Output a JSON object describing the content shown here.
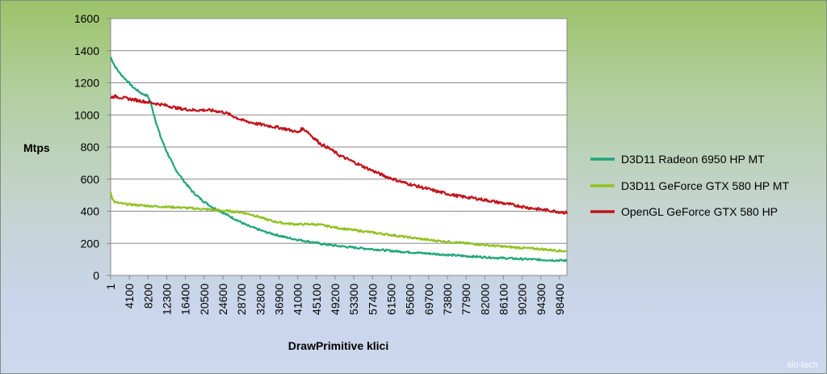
{
  "chart_data": {
    "type": "line",
    "title": "",
    "ylabel": "Mtps",
    "xlabel": "DrawPrimitive klici",
    "ylim": [
      0,
      1600
    ],
    "yticks": [
      "0",
      "200",
      "400",
      "600",
      "800",
      "1000",
      "1200",
      "1400",
      "1600"
    ],
    "xlim": [
      1,
      100000
    ],
    "xticks": [
      "1",
      "4100",
      "8200",
      "12300",
      "16400",
      "20500",
      "24600",
      "28700",
      "32800",
      "36900",
      "41000",
      "45100",
      "49200",
      "53300",
      "57400",
      "61500",
      "65600",
      "69700",
      "73800",
      "77900",
      "82000",
      "86100",
      "90200",
      "94300",
      "98400"
    ],
    "grid": "horizontal",
    "legend_position": "right",
    "series": [
      {
        "name": "D3D11 Radeon 6950 HP MT",
        "color": "#1fa67a",
        "x": [
          1,
          1000,
          2000,
          3000,
          4000,
          5000,
          6000,
          7000,
          8000,
          8500,
          9000,
          10000,
          11000,
          12000,
          13000,
          14000,
          16000,
          18000,
          20000,
          22000,
          24000,
          26000,
          28000,
          30000,
          32000,
          34000,
          36000,
          38000,
          40000,
          42000,
          44000,
          46000,
          48000,
          50000,
          54000,
          58000,
          62000,
          66000,
          70000,
          74000,
          78000,
          82000,
          86000,
          90000,
          94000,
          98000,
          100000
        ],
        "y": [
          1360,
          1300,
          1260,
          1230,
          1200,
          1170,
          1150,
          1130,
          1120,
          1100,
          1050,
          950,
          860,
          790,
          730,
          670,
          590,
          520,
          470,
          430,
          400,
          370,
          340,
          310,
          290,
          270,
          255,
          240,
          228,
          218,
          208,
          198,
          190,
          183,
          172,
          162,
          152,
          144,
          136,
          128,
          120,
          114,
          108,
          103,
          98,
          94,
          92
        ]
      },
      {
        "name": "D3D11 GeForce GTX 580 HP MT",
        "color": "#8fc21f",
        "x": [
          1,
          500,
          1000,
          3000,
          6000,
          10000,
          14000,
          18000,
          22000,
          24000,
          26000,
          28000,
          30000,
          32000,
          34000,
          36000,
          38000,
          40000,
          42000,
          44000,
          46000,
          48000,
          50000,
          54000,
          58000,
          62000,
          66000,
          70000,
          74000,
          78000,
          82000,
          86000,
          90000,
          94000,
          98000,
          100000
        ],
        "y": [
          520,
          470,
          455,
          445,
          438,
          430,
          425,
          418,
          410,
          405,
          400,
          395,
          385,
          370,
          350,
          335,
          325,
          320,
          318,
          320,
          315,
          305,
          295,
          280,
          265,
          250,
          235,
          220,
          210,
          200,
          190,
          180,
          172,
          165,
          155,
          150
        ]
      },
      {
        "name": "OpenGL GeForce GTX 580 HP",
        "color": "#c0141b",
        "x": [
          1,
          1000,
          3000,
          6000,
          9000,
          12000,
          15000,
          18000,
          21000,
          23000,
          25000,
          27000,
          29000,
          32000,
          35000,
          38000,
          40000,
          41000,
          42000,
          43000,
          44000,
          46000,
          48000,
          50000,
          53000,
          56000,
          60000,
          64000,
          68000,
          72000,
          76000,
          80000,
          84000,
          88000,
          92000,
          96000,
          100000
        ],
        "y": [
          1110,
          1115,
          1105,
          1090,
          1075,
          1060,
          1040,
          1030,
          1030,
          1025,
          1015,
          990,
          965,
          945,
          930,
          915,
          900,
          890,
          915,
          900,
          870,
          820,
          790,
          750,
          710,
          670,
          620,
          580,
          550,
          520,
          495,
          480,
          460,
          440,
          420,
          405,
          390
        ]
      }
    ]
  },
  "watermark": "slo-tech"
}
